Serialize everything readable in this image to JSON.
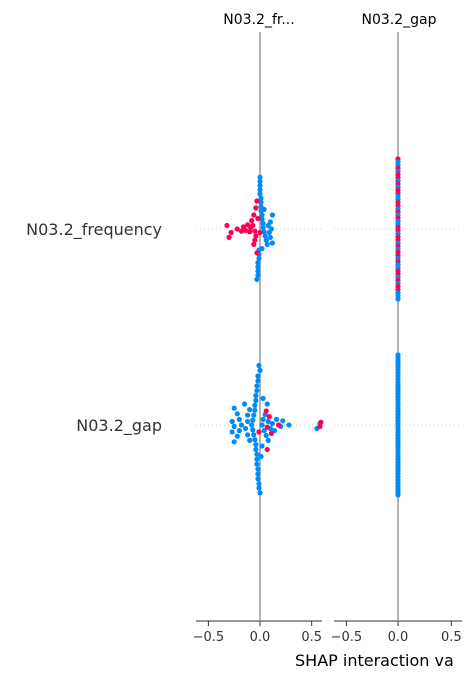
{
  "colors": {
    "high": "#ff0052",
    "low": "#008bfb",
    "axis_line": "#808080",
    "grid": "#cccccc",
    "text": "#333333"
  },
  "xlabel": "SHAP interaction va",
  "chart_data": [
    {
      "type": "scatter",
      "subtype": "beeswarm",
      "title": "N03.2_fr...",
      "xlim": [
        -0.62,
        0.6
      ],
      "x_ticks": [
        -0.5,
        0.0,
        0.5
      ],
      "x_tick_labels": [
        "−0.5",
        "0.0",
        "0.5"
      ],
      "rows": [
        {
          "label": "N03.2_frequency",
          "points": [
            {
              "x": 0.0,
              "y": -0.62,
              "c": "low"
            },
            {
              "x": 0.0,
              "y": -0.56,
              "c": "low"
            },
            {
              "x": 0.0,
              "y": -0.5,
              "c": "low"
            },
            {
              "x": 0.01,
              "y": -0.44,
              "c": "low"
            },
            {
              "x": 0.01,
              "y": -0.38,
              "c": "low"
            },
            {
              "x": 0.01,
              "y": -0.32,
              "c": "low"
            },
            {
              "x": 0.01,
              "y": -0.26,
              "c": "low"
            },
            {
              "x": 0.02,
              "y": -0.2,
              "c": "low"
            },
            {
              "x": 0.02,
              "y": -0.14,
              "c": "low"
            },
            {
              "x": 0.03,
              "y": -0.08,
              "c": "low"
            },
            {
              "x": 0.03,
              "y": -0.02,
              "c": "low"
            },
            {
              "x": 0.04,
              "y": 0.04,
              "c": "low"
            },
            {
              "x": 0.05,
              "y": 0.1,
              "c": "low"
            },
            {
              "x": 0.06,
              "y": 0.16,
              "c": "low"
            },
            {
              "x": 0.07,
              "y": 0.22,
              "c": "low"
            },
            {
              "x": 0.08,
              "y": -0.05,
              "c": "low"
            },
            {
              "x": 0.09,
              "y": 0.05,
              "c": "low"
            },
            {
              "x": 0.1,
              "y": -0.1,
              "c": "low"
            },
            {
              "x": 0.1,
              "y": 0.12,
              "c": "low"
            },
            {
              "x": 0.11,
              "y": 0.0,
              "c": "low"
            },
            {
              "x": 0.12,
              "y": -0.2,
              "c": "low"
            },
            {
              "x": 0.12,
              "y": 0.2,
              "c": "low"
            },
            {
              "x": -0.01,
              "y": 0.3,
              "c": "low"
            },
            {
              "x": -0.01,
              "y": 0.36,
              "c": "low"
            },
            {
              "x": -0.01,
              "y": 0.42,
              "c": "low"
            },
            {
              "x": -0.02,
              "y": 0.48,
              "c": "low"
            },
            {
              "x": -0.02,
              "y": 0.54,
              "c": "low"
            },
            {
              "x": -0.02,
              "y": 0.6,
              "c": "low"
            },
            {
              "x": -0.02,
              "y": 0.66,
              "c": "low"
            },
            {
              "x": -0.03,
              "y": 0.72,
              "c": "low"
            },
            {
              "x": 0.0,
              "y": -0.68,
              "c": "low"
            },
            {
              "x": 0.0,
              "y": -0.74,
              "c": "low"
            },
            {
              "x": 0.02,
              "y": 0.28,
              "c": "low"
            },
            {
              "x": 0.04,
              "y": -0.28,
              "c": "low"
            },
            {
              "x": -0.04,
              "y": 0.1,
              "c": "high"
            },
            {
              "x": -0.05,
              "y": 0.16,
              "c": "high"
            },
            {
              "x": -0.06,
              "y": 0.22,
              "c": "high"
            },
            {
              "x": -0.03,
              "y": 0.34,
              "c": "high"
            },
            {
              "x": -0.05,
              "y": 0.03,
              "c": "high"
            },
            {
              "x": -0.07,
              "y": -0.05,
              "c": "high"
            },
            {
              "x": -0.08,
              "y": -0.12,
              "c": "high"
            },
            {
              "x": -0.06,
              "y": -0.2,
              "c": "high"
            },
            {
              "x": -0.09,
              "y": -0.02,
              "c": "high"
            },
            {
              "x": -0.1,
              "y": 0.04,
              "c": "high"
            },
            {
              "x": -0.12,
              "y": -0.06,
              "c": "high"
            },
            {
              "x": -0.14,
              "y": 0.02,
              "c": "high"
            },
            {
              "x": -0.16,
              "y": -0.03,
              "c": "high"
            },
            {
              "x": -0.18,
              "y": 0.03,
              "c": "high"
            },
            {
              "x": -0.22,
              "y": 0.0,
              "c": "high"
            },
            {
              "x": -0.28,
              "y": 0.05,
              "c": "high"
            },
            {
              "x": -0.32,
              "y": -0.05,
              "c": "high"
            },
            {
              "x": -0.3,
              "y": 0.12,
              "c": "high"
            },
            {
              "x": -0.04,
              "y": -0.3,
              "c": "high"
            },
            {
              "x": -0.03,
              "y": -0.4,
              "c": "high"
            },
            {
              "x": 0.0,
              "y": 0.05,
              "c": "high"
            },
            {
              "x": -0.02,
              "y": -0.15,
              "c": "high"
            }
          ]
        },
        {
          "label": "N03.2_gap",
          "points": [
            {
              "x": -0.02,
              "y": -0.7,
              "c": "low"
            },
            {
              "x": -0.02,
              "y": -0.63,
              "c": "low"
            },
            {
              "x": -0.03,
              "y": -0.56,
              "c": "low"
            },
            {
              "x": -0.03,
              "y": -0.49,
              "c": "low"
            },
            {
              "x": -0.04,
              "y": -0.42,
              "c": "low"
            },
            {
              "x": -0.04,
              "y": -0.35,
              "c": "low"
            },
            {
              "x": -0.05,
              "y": -0.28,
              "c": "low"
            },
            {
              "x": -0.05,
              "y": -0.21,
              "c": "low"
            },
            {
              "x": -0.06,
              "y": -0.14,
              "c": "low"
            },
            {
              "x": -0.07,
              "y": -0.07,
              "c": "low"
            },
            {
              "x": -0.08,
              "y": 0.0,
              "c": "low"
            },
            {
              "x": -0.07,
              "y": 0.07,
              "c": "low"
            },
            {
              "x": -0.06,
              "y": 0.14,
              "c": "low"
            },
            {
              "x": -0.05,
              "y": 0.21,
              "c": "low"
            },
            {
              "x": -0.04,
              "y": 0.28,
              "c": "low"
            },
            {
              "x": -0.04,
              "y": 0.35,
              "c": "low"
            },
            {
              "x": -0.03,
              "y": 0.42,
              "c": "low"
            },
            {
              "x": -0.03,
              "y": 0.49,
              "c": "low"
            },
            {
              "x": -0.03,
              "y": 0.56,
              "c": "low"
            },
            {
              "x": -0.02,
              "y": 0.63,
              "c": "low"
            },
            {
              "x": -0.02,
              "y": 0.7,
              "c": "low"
            },
            {
              "x": -0.02,
              "y": 0.77,
              "c": "low"
            },
            {
              "x": -0.01,
              "y": 0.84,
              "c": "low"
            },
            {
              "x": -0.01,
              "y": 0.9,
              "c": "low"
            },
            {
              "x": -0.12,
              "y": -0.05,
              "c": "low"
            },
            {
              "x": -0.14,
              "y": 0.05,
              "c": "low"
            },
            {
              "x": -0.12,
              "y": 0.14,
              "c": "low"
            },
            {
              "x": -0.12,
              "y": -0.14,
              "c": "low"
            },
            {
              "x": -0.1,
              "y": 0.22,
              "c": "low"
            },
            {
              "x": -0.1,
              "y": -0.22,
              "c": "low"
            },
            {
              "x": -0.18,
              "y": 0.0,
              "c": "low"
            },
            {
              "x": -0.2,
              "y": 0.08,
              "c": "low"
            },
            {
              "x": -0.2,
              "y": -0.08,
              "c": "low"
            },
            {
              "x": -0.22,
              "y": 0.16,
              "c": "low"
            },
            {
              "x": -0.22,
              "y": -0.16,
              "c": "low"
            },
            {
              "x": -0.25,
              "y": 0.02,
              "c": "low"
            },
            {
              "x": -0.27,
              "y": -0.05,
              "c": "low"
            },
            {
              "x": -0.27,
              "y": 0.1,
              "c": "low"
            },
            {
              "x": -0.25,
              "y": -0.24,
              "c": "low"
            },
            {
              "x": -0.25,
              "y": 0.24,
              "c": "low"
            },
            {
              "x": 0.02,
              "y": 0.0,
              "c": "low"
            },
            {
              "x": 0.03,
              "y": -0.08,
              "c": "low"
            },
            {
              "x": 0.04,
              "y": 0.08,
              "c": "low"
            },
            {
              "x": 0.05,
              "y": -0.15,
              "c": "low"
            },
            {
              "x": 0.06,
              "y": 0.15,
              "c": "low"
            },
            {
              "x": 0.07,
              "y": -0.3,
              "c": "low"
            },
            {
              "x": 0.08,
              "y": 0.22,
              "c": "low"
            },
            {
              "x": 0.08,
              "y": -0.05,
              "c": "low"
            },
            {
              "x": 0.1,
              "y": 0.05,
              "c": "low"
            },
            {
              "x": 0.12,
              "y": -0.02,
              "c": "low"
            },
            {
              "x": 0.14,
              "y": 0.08,
              "c": "low"
            },
            {
              "x": 0.16,
              "y": -0.08,
              "c": "low"
            },
            {
              "x": 0.2,
              "y": 0.02,
              "c": "low"
            },
            {
              "x": 0.22,
              "y": -0.06,
              "c": "low"
            },
            {
              "x": 0.28,
              "y": 0.0,
              "c": "low"
            },
            {
              "x": 0.55,
              "y": 0.05,
              "c": "low"
            },
            {
              "x": 0.58,
              "y": -0.02,
              "c": "low"
            },
            {
              "x": 0.0,
              "y": -0.78,
              "c": "low"
            },
            {
              "x": 0.0,
              "y": 0.97,
              "c": "low"
            },
            {
              "x": -0.01,
              "y": -0.85,
              "c": "low"
            },
            {
              "x": 0.02,
              "y": 0.3,
              "c": "low"
            },
            {
              "x": 0.03,
              "y": -0.38,
              "c": "low"
            },
            {
              "x": 0.01,
              "y": 0.45,
              "c": "low"
            },
            {
              "x": -0.15,
              "y": -0.3,
              "c": "low"
            },
            {
              "x": 0.07,
              "y": 0.03,
              "c": "high"
            },
            {
              "x": 0.09,
              "y": -0.12,
              "c": "high"
            },
            {
              "x": 0.06,
              "y": -0.2,
              "c": "high"
            },
            {
              "x": 0.07,
              "y": 0.35,
              "c": "high"
            },
            {
              "x": 0.18,
              "y": 0.0,
              "c": "high"
            },
            {
              "x": 0.11,
              "y": 0.12,
              "c": "high"
            },
            {
              "x": 0.58,
              "y": 0.02,
              "c": "high"
            },
            {
              "x": 0.59,
              "y": -0.04,
              "c": "high"
            },
            {
              "x": -0.01,
              "y": 0.1,
              "c": "high"
            }
          ]
        }
      ]
    },
    {
      "type": "scatter",
      "subtype": "beeswarm",
      "title": "N03.2_gap",
      "xlim": [
        -0.62,
        0.6
      ],
      "x_ticks": [
        -0.5,
        0.0,
        0.5
      ],
      "x_tick_labels": [
        "−0.5",
        "0.0",
        "0.5"
      ],
      "rows": [
        {
          "label": "N03.2_frequency",
          "n_points": 46,
          "x_value": 0.0,
          "colors": [
            "high",
            "low",
            "low",
            "high",
            "low",
            "high",
            "high",
            "low",
            "high",
            "low",
            "high",
            "high",
            "low",
            "low",
            "high",
            "high",
            "low",
            "high",
            "low",
            "high",
            "low",
            "low",
            "high",
            "high",
            "low",
            "high",
            "high",
            "low",
            "high",
            "low",
            "high",
            "high",
            "low",
            "high",
            "low",
            "low",
            "high",
            "high",
            "low",
            "high",
            "low",
            "high",
            "high",
            "low",
            "low",
            "low"
          ]
        },
        {
          "label": "N03.2_gap",
          "n_points": 48,
          "x_value": 0.0,
          "colors": [
            "low"
          ]
        }
      ]
    }
  ]
}
